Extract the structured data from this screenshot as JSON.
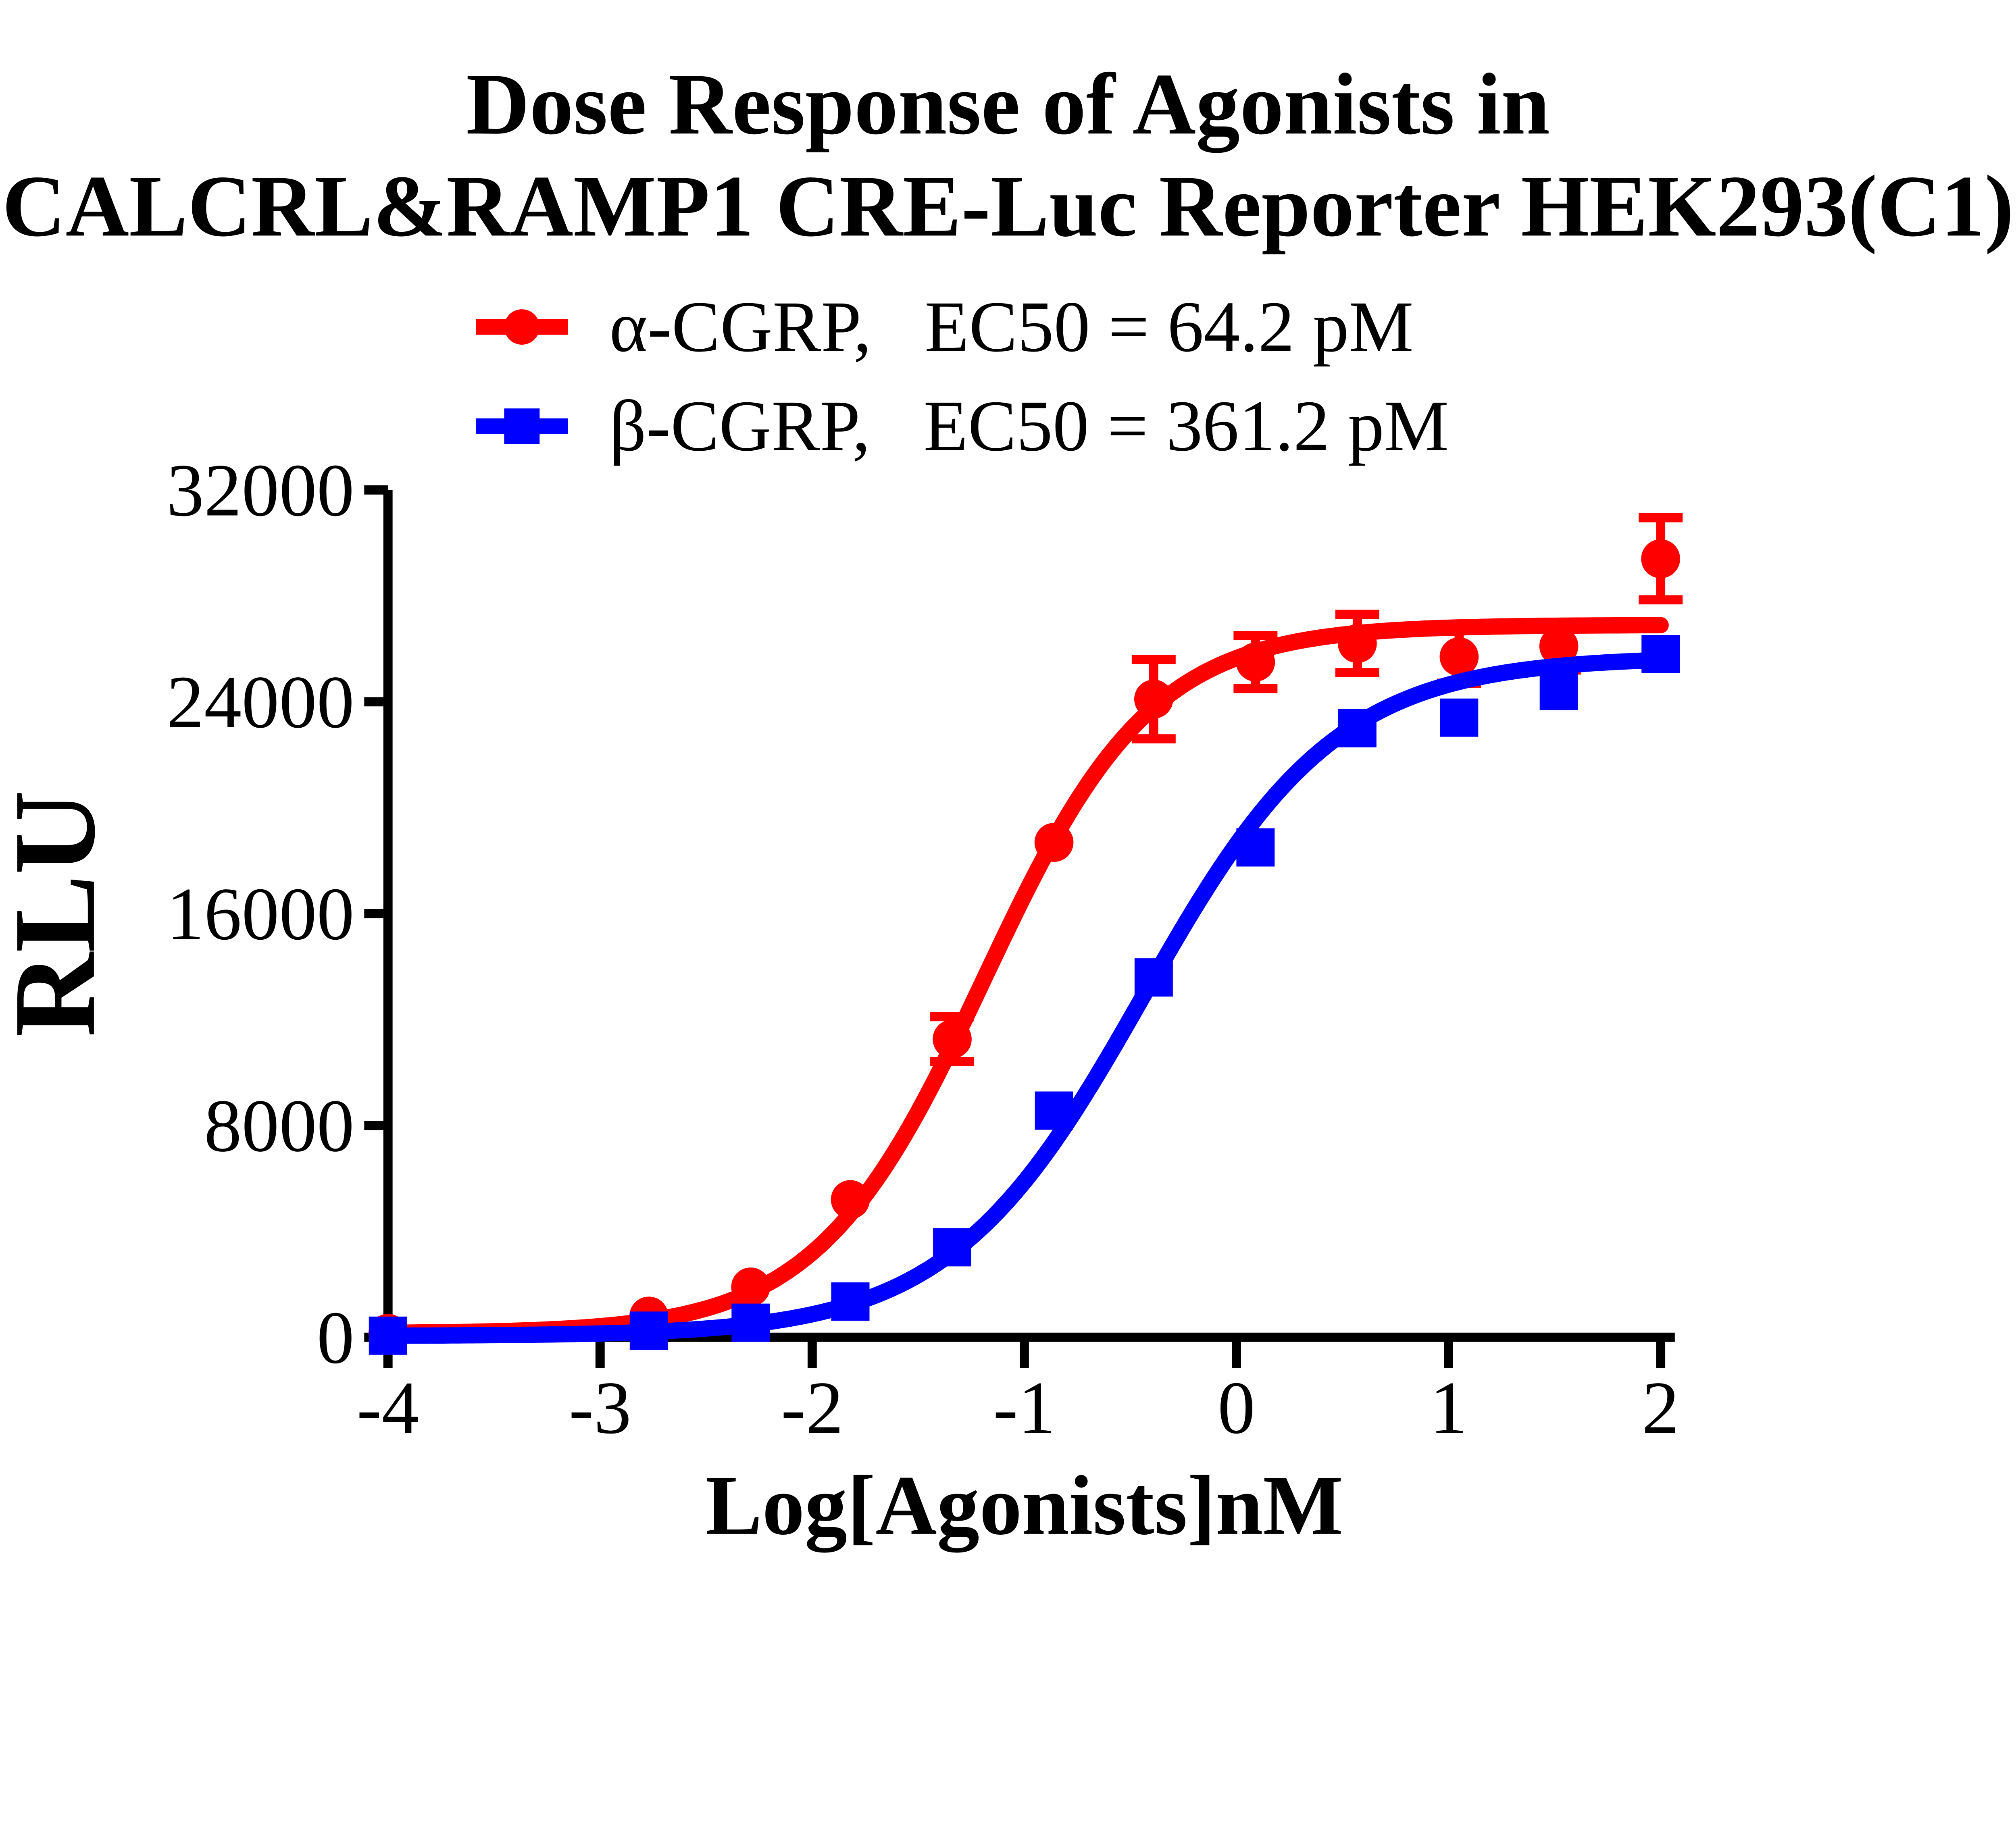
{
  "chart_data": {
    "type": "line",
    "title_line1": "Dose Response of Agonists in",
    "title_line2": "CALCRL&RAMP1 CRE-Luc Reporter HEK293(C1)",
    "xlabel": "Log[Agonists]nM",
    "ylabel": "RLU",
    "xlim": [
      -4,
      2
    ],
    "ylim": [
      0,
      32000
    ],
    "x_ticks": [
      -4,
      -3,
      -2,
      -1,
      0,
      1,
      2
    ],
    "y_ticks": [
      0,
      8000,
      16000,
      24000,
      32000
    ],
    "grid": false,
    "legend_position": "top-center",
    "background_color": "#FFFFFF",
    "axis_color": "#000000",
    "series": [
      {
        "name": "α-CGRP",
        "legend_name_label": "α-CGRP,",
        "legend_ec50_label": "EC50 = 64.2 pM",
        "ec50_pM": 64.2,
        "color": "#FF0000",
        "marker": "circle",
        "x": [
          -4,
          -2.77,
          -2.29,
          -1.82,
          -1.34,
          -0.86,
          -0.39,
          0.09,
          0.57,
          1.05,
          1.52,
          2
        ],
        "y": [
          150,
          800,
          1900,
          5200,
          11260,
          18690,
          24100,
          25500,
          26200,
          25700,
          26100,
          29400
        ],
        "yerr": [
          null,
          null,
          null,
          null,
          850,
          null,
          1500,
          1000,
          1100,
          1000,
          900,
          1550
        ],
        "fit_curve": {
          "bottom": 150,
          "top": 26900,
          "log_ec50": -1.19,
          "hill": 1.1
        }
      },
      {
        "name": "β-CGRP",
        "legend_name_label": "β-CGRP,",
        "legend_ec50_label": "EC50 = 361.2 pM",
        "ec50_pM": 361.2,
        "color": "#0000FF",
        "marker": "square",
        "x": [
          -4,
          -2.77,
          -2.29,
          -1.82,
          -1.34,
          -0.86,
          -0.39,
          0.09,
          0.57,
          1.05,
          1.52,
          2
        ],
        "y": [
          60,
          250,
          550,
          1350,
          3400,
          8560,
          13590,
          18500,
          23000,
          23400,
          24400,
          25800
        ],
        "yerr": [
          null,
          null,
          null,
          null,
          null,
          null,
          null,
          null,
          null,
          null,
          null,
          null
        ],
        "fit_curve": {
          "bottom": 50,
          "top": 25700,
          "log_ec50": -0.44,
          "hill": 0.95
        }
      }
    ]
  }
}
